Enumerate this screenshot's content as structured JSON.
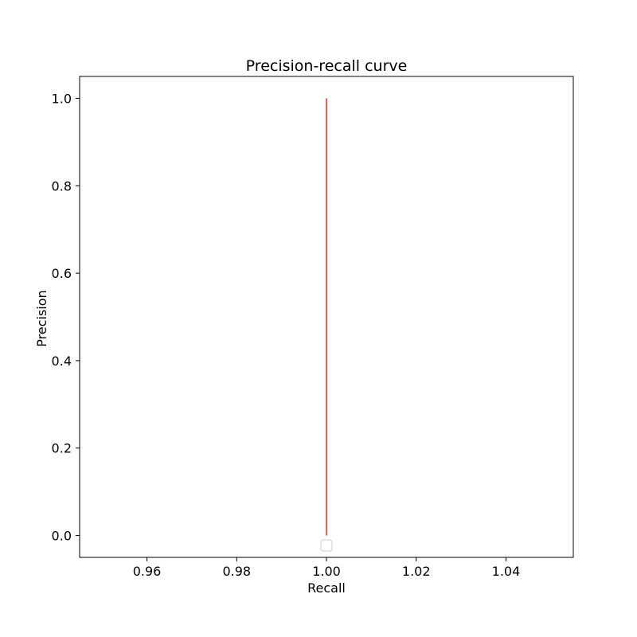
{
  "chart_data": {
    "type": "line",
    "title": "Precision-recall curve",
    "xlabel": "Recall",
    "ylabel": "Precision",
    "xlim": [
      0.945,
      1.055
    ],
    "ylim": [
      -0.05,
      1.05
    ],
    "x_ticks": [
      0.96,
      0.98,
      1.0,
      1.02,
      1.04
    ],
    "x_tick_labels": [
      "0.96",
      "0.98",
      "1.00",
      "1.02",
      "1.04"
    ],
    "y_ticks": [
      0.0,
      0.2,
      0.4,
      0.6,
      0.8,
      1.0
    ],
    "y_tick_labels": [
      "0.0",
      "0.2",
      "0.4",
      "0.6",
      "0.8",
      "1.0"
    ],
    "grid": false,
    "legend": "bottom-center, empty",
    "series": [
      {
        "color": "#ff0000",
        "x": [
          1.0,
          1.0
        ],
        "y": [
          0.0,
          1.0
        ]
      }
    ]
  }
}
